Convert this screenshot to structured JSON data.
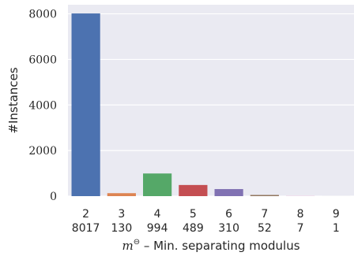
{
  "chart_data": {
    "type": "bar",
    "categories": [
      "2",
      "3",
      "4",
      "5",
      "6",
      "7",
      "8",
      "9"
    ],
    "counts": [
      "8017",
      "130",
      "994",
      "489",
      "310",
      "52",
      "7",
      "1"
    ],
    "values": [
      8017,
      130,
      994,
      489,
      310,
      52,
      7,
      1
    ],
    "xlabel_math": "m",
    "xlabel_sup": "⊖",
    "xlabel_rest": " – Min. separating modulus",
    "ylabel": "#Instances",
    "yticks": [
      0,
      2000,
      4000,
      6000,
      8000
    ],
    "ylim": [
      0,
      8400
    ],
    "grid": true,
    "colors": [
      "#4c72b0",
      "#dd8452",
      "#55a868",
      "#c44e52",
      "#8172b3",
      "#937860",
      "#da8bc3",
      "#8c8c8c"
    ],
    "background": "#eaeaf2"
  }
}
